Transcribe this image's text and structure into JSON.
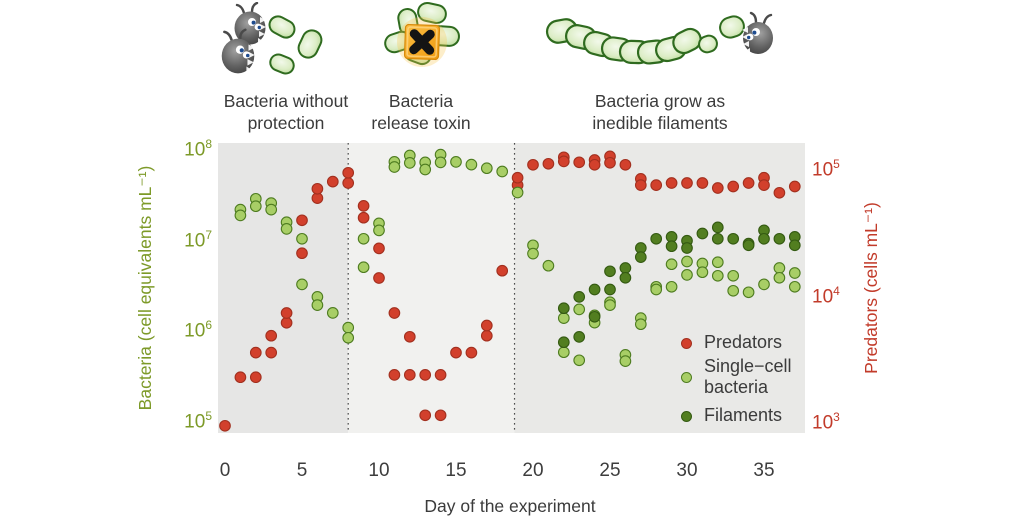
{
  "figure": {
    "phases": [
      {
        "label_line1": "Bacteria without",
        "label_line2": "protection"
      },
      {
        "label_line1": "Bacteria",
        "label_line2": "release toxin"
      },
      {
        "label_line1": "Bacteria grow as",
        "label_line2": "inedible filaments"
      }
    ],
    "panel_colors": [
      "#e6e6e5",
      "#f1f1ef",
      "#e9e9e7"
    ],
    "divider_color": "#4a4a4a",
    "axes": {
      "left": {
        "title": "Bacteria (cell equivalents mL⁻¹)",
        "tick_base": "10",
        "tick_exponents": [
          8,
          7,
          6,
          5
        ],
        "color": "#7d9a28"
      },
      "right": {
        "title": "Predators (cells mL⁻¹)",
        "tick_base": "10",
        "tick_exponents": [
          5,
          4,
          3
        ],
        "color": "#c23b2a"
      },
      "x": {
        "title": "Day of the experiment",
        "ticks": [
          0,
          5,
          10,
          15,
          20,
          25,
          30,
          35
        ]
      }
    },
    "legend": [
      {
        "label_lines": [
          "Predators"
        ],
        "color": "#d2402c",
        "stroke": "#a2301f"
      },
      {
        "label_lines": [
          "Single−cell",
          "bacteria"
        ],
        "color": "#a8ce66",
        "stroke": "#4e7c20"
      },
      {
        "label_lines": [
          "Filaments"
        ],
        "color": "#527e20",
        "stroke": "#345a12"
      }
    ]
  },
  "chart_data": {
    "type": "scatter",
    "title": "",
    "xlabel": "Day of the experiment",
    "ylabel_left": "Bacteria (cell equivalents mL⁻¹)",
    "ylabel_right": "Predators (cells mL⁻¹)",
    "x_range": [
      -0.5,
      38
    ],
    "y_left_log_range": [
      4.9,
      8.1
    ],
    "y_right_log_range": [
      2.9,
      5.2
    ],
    "grid": false,
    "legend_position": "inside-lower-right",
    "phase_boundaries_days": [
      8,
      18.8
    ],
    "phases": [
      "Bacteria without protection",
      "Bacteria release toxin",
      "Bacteria grow as inedible filaments"
    ],
    "series": [
      {
        "name": "Predators",
        "axis": "right",
        "color": "#d2402c",
        "stroke": "#a2301f",
        "points": [
          [
            0,
            950
          ],
          [
            1,
            2300
          ],
          [
            2,
            2300
          ],
          [
            2,
            3600
          ],
          [
            3,
            3600
          ],
          [
            3,
            4900
          ],
          [
            4,
            6200
          ],
          [
            4,
            7400
          ],
          [
            5,
            22000
          ],
          [
            5,
            40000
          ],
          [
            6,
            60000
          ],
          [
            6,
            71000
          ],
          [
            7,
            81000
          ],
          [
            8,
            79000
          ],
          [
            8,
            95000
          ],
          [
            9,
            42000
          ],
          [
            9,
            52000
          ],
          [
            10,
            14000
          ],
          [
            10,
            24000
          ],
          [
            11,
            7400
          ],
          [
            11,
            2400
          ],
          [
            12,
            4800
          ],
          [
            12,
            2400
          ],
          [
            13,
            2400
          ],
          [
            13,
            1150
          ],
          [
            14,
            2400
          ],
          [
            14,
            1150
          ],
          [
            15,
            3600
          ],
          [
            16,
            3600
          ],
          [
            17,
            4900
          ],
          [
            17,
            5900
          ],
          [
            18,
            16000
          ],
          [
            19,
            76000
          ],
          [
            19,
            87000
          ],
          [
            20,
            110000
          ],
          [
            21,
            112000
          ],
          [
            22,
            126000
          ],
          [
            22,
            117000
          ],
          [
            23,
            115000
          ],
          [
            24,
            120000
          ],
          [
            24,
            110000
          ],
          [
            25,
            128000
          ],
          [
            25,
            114000
          ],
          [
            26,
            110000
          ],
          [
            27,
            85000
          ],
          [
            27,
            76000
          ],
          [
            28,
            76000
          ],
          [
            29,
            79000
          ],
          [
            30,
            79000
          ],
          [
            31,
            79000
          ],
          [
            32,
            72000
          ],
          [
            33,
            74000
          ],
          [
            34,
            79000
          ],
          [
            35,
            87000
          ],
          [
            35,
            76000
          ],
          [
            36,
            66000
          ],
          [
            37,
            74000
          ]
        ]
      },
      {
        "name": "Single−cell bacteria",
        "axis": "left",
        "color": "#a8ce66",
        "stroke": "#4e7c20",
        "points": [
          [
            1,
            22000000.0
          ],
          [
            1,
            19000000.0
          ],
          [
            2,
            29000000.0
          ],
          [
            2,
            24000000.0
          ],
          [
            3,
            26000000.0
          ],
          [
            3,
            22000000.0
          ],
          [
            4,
            16000000.0
          ],
          [
            4,
            13500000.0
          ],
          [
            5,
            10500000.0
          ],
          [
            5,
            3300000.0
          ],
          [
            6,
            2400000.0
          ],
          [
            6,
            1950000.0
          ],
          [
            7,
            1600000.0
          ],
          [
            8,
            1100000.0
          ],
          [
            8,
            850000.0
          ],
          [
            9,
            10500000.0
          ],
          [
            9,
            5100000.0
          ],
          [
            10,
            15500000.0
          ],
          [
            10,
            13000000.0
          ],
          [
            11,
            74000000.0
          ],
          [
            11,
            65000000.0
          ],
          [
            12,
            87000000.0
          ],
          [
            12,
            72000000.0
          ],
          [
            13,
            73000000.0
          ],
          [
            13,
            61000000.0
          ],
          [
            14,
            89000000.0
          ],
          [
            14,
            73000000.0
          ],
          [
            15,
            74000000.0
          ],
          [
            16,
            69000000.0
          ],
          [
            17,
            63000000.0
          ],
          [
            18,
            58000000.0
          ],
          [
            19,
            34000000.0
          ],
          [
            20,
            8900000.0
          ],
          [
            20,
            7200000.0
          ],
          [
            21,
            5300000.0
          ],
          [
            22,
            1400000.0
          ],
          [
            22,
            590000.0
          ],
          [
            23,
            1750000.0
          ],
          [
            23,
            480000.0
          ],
          [
            24,
            1500000.0
          ],
          [
            24,
            1250000.0
          ],
          [
            25,
            2100000.0
          ],
          [
            25,
            1950000.0
          ],
          [
            26,
            550000.0
          ],
          [
            26,
            470000.0
          ],
          [
            27,
            1400000.0
          ],
          [
            27,
            1200000.0
          ],
          [
            28,
            3100000.0
          ],
          [
            28,
            2900000.0
          ],
          [
            29,
            3100000.0
          ],
          [
            29,
            5500000.0
          ],
          [
            30,
            5900000.0
          ],
          [
            30,
            4200000.0
          ],
          [
            31,
            5600000.0
          ],
          [
            31,
            4500000.0
          ],
          [
            32,
            5800000.0
          ],
          [
            32,
            4100000.0
          ],
          [
            33,
            4100000.0
          ],
          [
            33,
            2800000.0
          ],
          [
            34,
            2700000.0
          ],
          [
            35,
            3300000.0
          ],
          [
            36,
            5000000.0
          ],
          [
            36,
            3900000.0
          ],
          [
            37,
            4400000.0
          ],
          [
            37,
            3100000.0
          ]
        ]
      },
      {
        "name": "Filaments",
        "axis": "left",
        "color": "#527e20",
        "stroke": "#345a12",
        "points": [
          [
            22,
            1800000.0
          ],
          [
            22,
            760000.0
          ],
          [
            23,
            2400000.0
          ],
          [
            23,
            870000.0
          ],
          [
            24,
            2900000.0
          ],
          [
            24,
            1450000.0
          ],
          [
            25,
            4600000.0
          ],
          [
            25,
            2900000.0
          ],
          [
            26,
            5000000.0
          ],
          [
            26,
            3900000.0
          ],
          [
            27,
            8300000.0
          ],
          [
            27,
            6600000.0
          ],
          [
            28,
            10500000.0
          ],
          [
            29,
            11000000.0
          ],
          [
            29,
            8700000.0
          ],
          [
            30,
            10000000.0
          ],
          [
            30,
            8300000.0
          ],
          [
            31,
            12000000.0
          ],
          [
            32,
            14000000.0
          ],
          [
            32,
            10500000.0
          ],
          [
            33,
            10500000.0
          ],
          [
            34,
            9300000.0
          ],
          [
            34,
            8900000.0
          ],
          [
            35,
            13000000.0
          ],
          [
            35,
            10500000.0
          ],
          [
            36,
            10500000.0
          ],
          [
            37,
            11000000.0
          ],
          [
            37,
            8900000.0
          ]
        ]
      }
    ]
  }
}
